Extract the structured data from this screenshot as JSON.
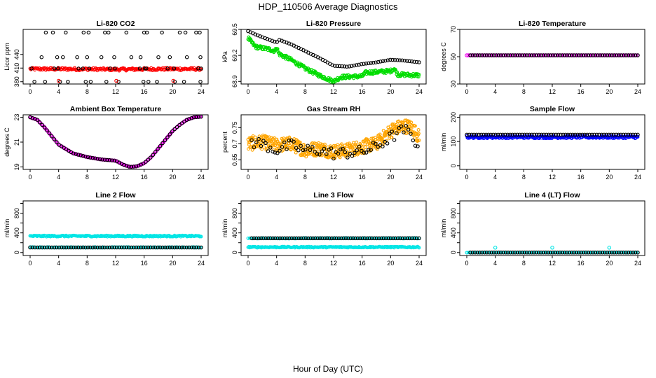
{
  "page": {
    "title": "HDP_110506  Average Diagnostics",
    "xlabel": "Hour of Day (UTC)"
  },
  "colors": {
    "black": "#000000",
    "red": "#ff0000",
    "green": "#00dd00",
    "magenta": "#ee00ee",
    "orange": "#ffa500",
    "blue": "#0000ff",
    "cyan": "#00e5e5"
  },
  "chart_data": [
    {
      "id": "co2",
      "type": "scatter",
      "title": "Li-820 CO2",
      "ylabel": "Licor ppm",
      "xlim": [
        0,
        24
      ],
      "ylim": [
        375,
        495
      ],
      "yticks": [
        380,
        410,
        440
      ],
      "xticks": [
        0,
        4,
        8,
        12,
        16,
        20,
        24
      ],
      "series": [
        {
          "name": "avg-red",
          "color": "red",
          "mode": "band",
          "x": [
            0,
            6,
            12,
            18,
            24
          ],
          "y": [
            408,
            408,
            407,
            408,
            408
          ],
          "jitter": 3,
          "n": 220
        },
        {
          "name": "black-high",
          "color": "black",
          "mode": "points",
          "x": [
            2.2,
            3.2,
            5,
            7.5,
            8.2,
            10.5,
            11,
            13.5,
            16,
            16.4,
            18.5,
            21,
            21.8,
            23.3,
            23.8
          ],
          "y": 488
        },
        {
          "name": "black-mid",
          "color": "black",
          "mode": "points",
          "x": [
            1.6,
            3.8,
            4.6,
            6.6,
            8,
            10,
            11.8,
            14.2,
            15.5,
            18,
            19.6,
            22,
            23.9
          ],
          "y": 434
        },
        {
          "name": "black-avg",
          "color": "black",
          "mode": "points",
          "x": [
            0.2,
            3.4,
            3.9,
            6.8,
            7.4,
            8.3,
            11.2,
            11.9,
            15.4,
            16.1,
            16.3,
            19.3,
            20.2,
            23.6,
            24
          ],
          "y": 409
        },
        {
          "name": "black-low",
          "color": "black",
          "mode": "points",
          "x": [
            0.6,
            2.1,
            4.2,
            5.3,
            7.8,
            8.5,
            10.7,
            12.4,
            15.9,
            16.6,
            17.8,
            20.3,
            21.6,
            23.9
          ],
          "y": 380
        },
        {
          "name": "red-low",
          "color": "red",
          "mode": "points",
          "x": [
            4,
            12.1,
            20.1
          ],
          "y": 382
        }
      ]
    },
    {
      "id": "pressure",
      "type": "scatter",
      "title": "Li-820 Pressure",
      "ylabel": "kPa",
      "xlim": [
        0,
        24
      ],
      "ylim": [
        68.87,
        69.5
      ],
      "yticks": [
        68.9,
        69.2,
        69.5
      ],
      "xticks": [
        0,
        4,
        8,
        12,
        16,
        20,
        24
      ],
      "series": [
        {
          "name": "green-band",
          "color": "green",
          "mode": "band",
          "x": [
            0,
            0.5,
            1,
            3,
            3.8,
            4,
            4.3,
            6,
            8,
            10,
            12,
            13,
            16,
            16.5,
            20,
            20.5,
            21,
            24
          ],
          "y": [
            69.4,
            69.35,
            69.3,
            69.27,
            69.25,
            69.3,
            69.22,
            69.15,
            69.05,
            68.97,
            68.9,
            68.95,
            68.96,
            69.0,
            69.02,
            69.05,
            68.98,
            68.97
          ],
          "jitter": 0.022,
          "n": 320
        },
        {
          "name": "black",
          "color": "black",
          "mode": "line",
          "x": [
            0,
            0.8,
            2,
            4,
            4.4,
            6,
            8,
            10,
            12,
            14,
            16,
            18,
            20,
            22,
            24
          ],
          "y": [
            69.48,
            69.45,
            69.41,
            69.35,
            69.38,
            69.33,
            69.25,
            69.17,
            69.08,
            69.07,
            69.1,
            69.12,
            69.15,
            69.14,
            69.12
          ],
          "n": 72
        }
      ]
    },
    {
      "id": "temperature",
      "type": "scatter",
      "title": "Li-820 Temperature",
      "ylabel": "degrees C",
      "xlim": [
        0,
        24
      ],
      "ylim": [
        30,
        70
      ],
      "yticks": [
        30,
        50,
        70
      ],
      "xticks": [
        0,
        4,
        8,
        12,
        16,
        20,
        24
      ],
      "series": [
        {
          "name": "magenta",
          "color": "magenta",
          "mode": "line",
          "x": [
            0,
            24
          ],
          "y": [
            51,
            51
          ],
          "n": 110
        },
        {
          "name": "black",
          "color": "black",
          "mode": "line",
          "x": [
            0.5,
            24
          ],
          "y": [
            51,
            51
          ],
          "n": 72
        }
      ]
    },
    {
      "id": "ambient",
      "type": "scatter",
      "title": "Ambient Box Temperature",
      "ylabel": "degrees C",
      "xlim": [
        0,
        24
      ],
      "ylim": [
        18.8,
        23.2
      ],
      "yticks": [
        19,
        21,
        23
      ],
      "xticks": [
        0,
        4,
        8,
        12,
        16,
        20,
        24
      ],
      "series": [
        {
          "name": "magenta",
          "color": "magenta",
          "mode": "line",
          "x": [
            0,
            1,
            2,
            3,
            4,
            6,
            8,
            10,
            12,
            13,
            14,
            15,
            16,
            17,
            18,
            19,
            20,
            21,
            22,
            23,
            24
          ],
          "y": [
            23.0,
            22.8,
            22.2,
            21.5,
            20.8,
            20.1,
            19.8,
            19.6,
            19.5,
            19.2,
            19.0,
            19.05,
            19.3,
            19.8,
            20.5,
            21.2,
            21.9,
            22.4,
            22.8,
            23.0,
            23.05
          ],
          "n": 150
        },
        {
          "name": "black",
          "color": "black",
          "mode": "line",
          "x": [
            0,
            1,
            2,
            3,
            4,
            6,
            8,
            10,
            12,
            13,
            14,
            15,
            16,
            17,
            18,
            19,
            20,
            21,
            22,
            23,
            24
          ],
          "y": [
            23.0,
            22.8,
            22.2,
            21.5,
            20.8,
            20.1,
            19.8,
            19.6,
            19.5,
            19.2,
            19.0,
            19.05,
            19.3,
            19.8,
            20.5,
            21.2,
            21.9,
            22.4,
            22.8,
            23.0,
            23.05
          ],
          "n": 72
        }
      ]
    },
    {
      "id": "rh",
      "type": "scatter",
      "title": "Gas Stream RH",
      "ylabel": "percent",
      "xlim": [
        0,
        24
      ],
      "ylim": [
        0.62,
        0.79
      ],
      "yticks": [
        0.65,
        0.7,
        0.75
      ],
      "xticks": [
        0,
        4,
        8,
        12,
        16,
        20,
        24
      ],
      "series": [
        {
          "name": "orange-band",
          "color": "orange",
          "mode": "band",
          "x": [
            0,
            2,
            4,
            6,
            8,
            10,
            12,
            14,
            16,
            18,
            20,
            21,
            22,
            23,
            24
          ],
          "y": [
            0.7,
            0.705,
            0.695,
            0.7,
            0.68,
            0.685,
            0.675,
            0.68,
            0.69,
            0.7,
            0.74,
            0.75,
            0.755,
            0.75,
            0.72
          ],
          "jitter": 0.022,
          "n": 520
        },
        {
          "name": "black",
          "color": "black",
          "mode": "scatter",
          "x": [
            0.5,
            2,
            4,
            6,
            8,
            10,
            12,
            14,
            16,
            18,
            20,
            22,
            23.8
          ],
          "y": [
            0.705,
            0.7,
            0.68,
            0.695,
            0.68,
            0.68,
            0.67,
            0.672,
            0.675,
            0.69,
            0.72,
            0.745,
            0.7
          ],
          "jitter": 0.018,
          "n": 72
        }
      ]
    },
    {
      "id": "sample-flow",
      "type": "scatter",
      "title": "Sample Flow",
      "ylabel": "ml/min",
      "xlim": [
        0,
        24
      ],
      "ylim": [
        -15,
        210
      ],
      "yticks": [
        0,
        100,
        200
      ],
      "xticks": [
        0,
        4,
        8,
        12,
        16,
        20,
        24
      ],
      "series": [
        {
          "name": "blue",
          "color": "blue",
          "mode": "band",
          "x": [
            0,
            24
          ],
          "y": [
            118,
            118
          ],
          "jitter": 5,
          "n": 260
        },
        {
          "name": "black",
          "color": "black",
          "mode": "line",
          "x": [
            0,
            24
          ],
          "y": [
            128,
            128
          ],
          "n": 72
        }
      ]
    },
    {
      "id": "line2",
      "type": "scatter",
      "title": "Line 2 Flow",
      "ylabel": "ml/min",
      "xlim": [
        0,
        24
      ],
      "ylim": [
        -60,
        1050
      ],
      "yticks": [
        0,
        200,
        400,
        600,
        800,
        1000
      ],
      "ytick_labels": [
        "0",
        "",
        "400",
        "",
        "800",
        ""
      ],
      "xticks": [
        0,
        4,
        8,
        12,
        16,
        20,
        24
      ],
      "series": [
        {
          "name": "cyan-high",
          "color": "cyan",
          "mode": "band",
          "x": [
            0,
            24
          ],
          "y": [
            335,
            335
          ],
          "jitter": 14,
          "n": 220
        },
        {
          "name": "cyan-low",
          "color": "cyan",
          "mode": "band",
          "x": [
            0,
            24
          ],
          "y": [
            105,
            105
          ],
          "jitter": 8,
          "n": 140
        },
        {
          "name": "black",
          "color": "black",
          "mode": "line",
          "x": [
            0,
            24
          ],
          "y": [
            103,
            103
          ],
          "n": 72
        }
      ]
    },
    {
      "id": "line3",
      "type": "scatter",
      "title": "Line 3 Flow",
      "ylabel": "ml/min",
      "xlim": [
        0,
        24
      ],
      "ylim": [
        -60,
        1050
      ],
      "yticks": [
        0,
        200,
        400,
        600,
        800,
        1000
      ],
      "ytick_labels": [
        "0",
        "",
        "400",
        "",
        "800",
        ""
      ],
      "xticks": [
        0,
        4,
        8,
        12,
        16,
        20,
        24
      ],
      "series": [
        {
          "name": "cyan-high",
          "color": "cyan",
          "mode": "band",
          "x": [
            0,
            24
          ],
          "y": [
            290,
            290
          ],
          "jitter": 8,
          "n": 110
        },
        {
          "name": "cyan-low",
          "color": "cyan",
          "mode": "band",
          "x": [
            0,
            24
          ],
          "y": [
            110,
            110
          ],
          "jitter": 12,
          "n": 220
        },
        {
          "name": "black",
          "color": "black",
          "mode": "line",
          "x": [
            0.5,
            24
          ],
          "y": [
            290,
            290
          ],
          "n": 72
        }
      ]
    },
    {
      "id": "line4",
      "type": "scatter",
      "title": "Line 4 (LT) Flow",
      "ylabel": "ml/min",
      "xlim": [
        0,
        24
      ],
      "ylim": [
        -60,
        1050
      ],
      "yticks": [
        0,
        200,
        400,
        600,
        800,
        1000
      ],
      "ytick_labels": [
        "0",
        "",
        "400",
        "",
        "800",
        ""
      ],
      "xticks": [
        0,
        4,
        8,
        12,
        16,
        20,
        24
      ],
      "series": [
        {
          "name": "cyan-base",
          "color": "cyan",
          "mode": "band",
          "x": [
            0,
            24
          ],
          "y": [
            0,
            0
          ],
          "jitter": 3,
          "n": 120
        },
        {
          "name": "cyan-spikes",
          "color": "cyan",
          "mode": "points",
          "x": [
            4,
            12,
            20
          ],
          "y": 100
        },
        {
          "name": "black",
          "color": "black",
          "mode": "line",
          "x": [
            0.5,
            24
          ],
          "y": [
            0,
            0
          ],
          "n": 72
        }
      ]
    }
  ]
}
